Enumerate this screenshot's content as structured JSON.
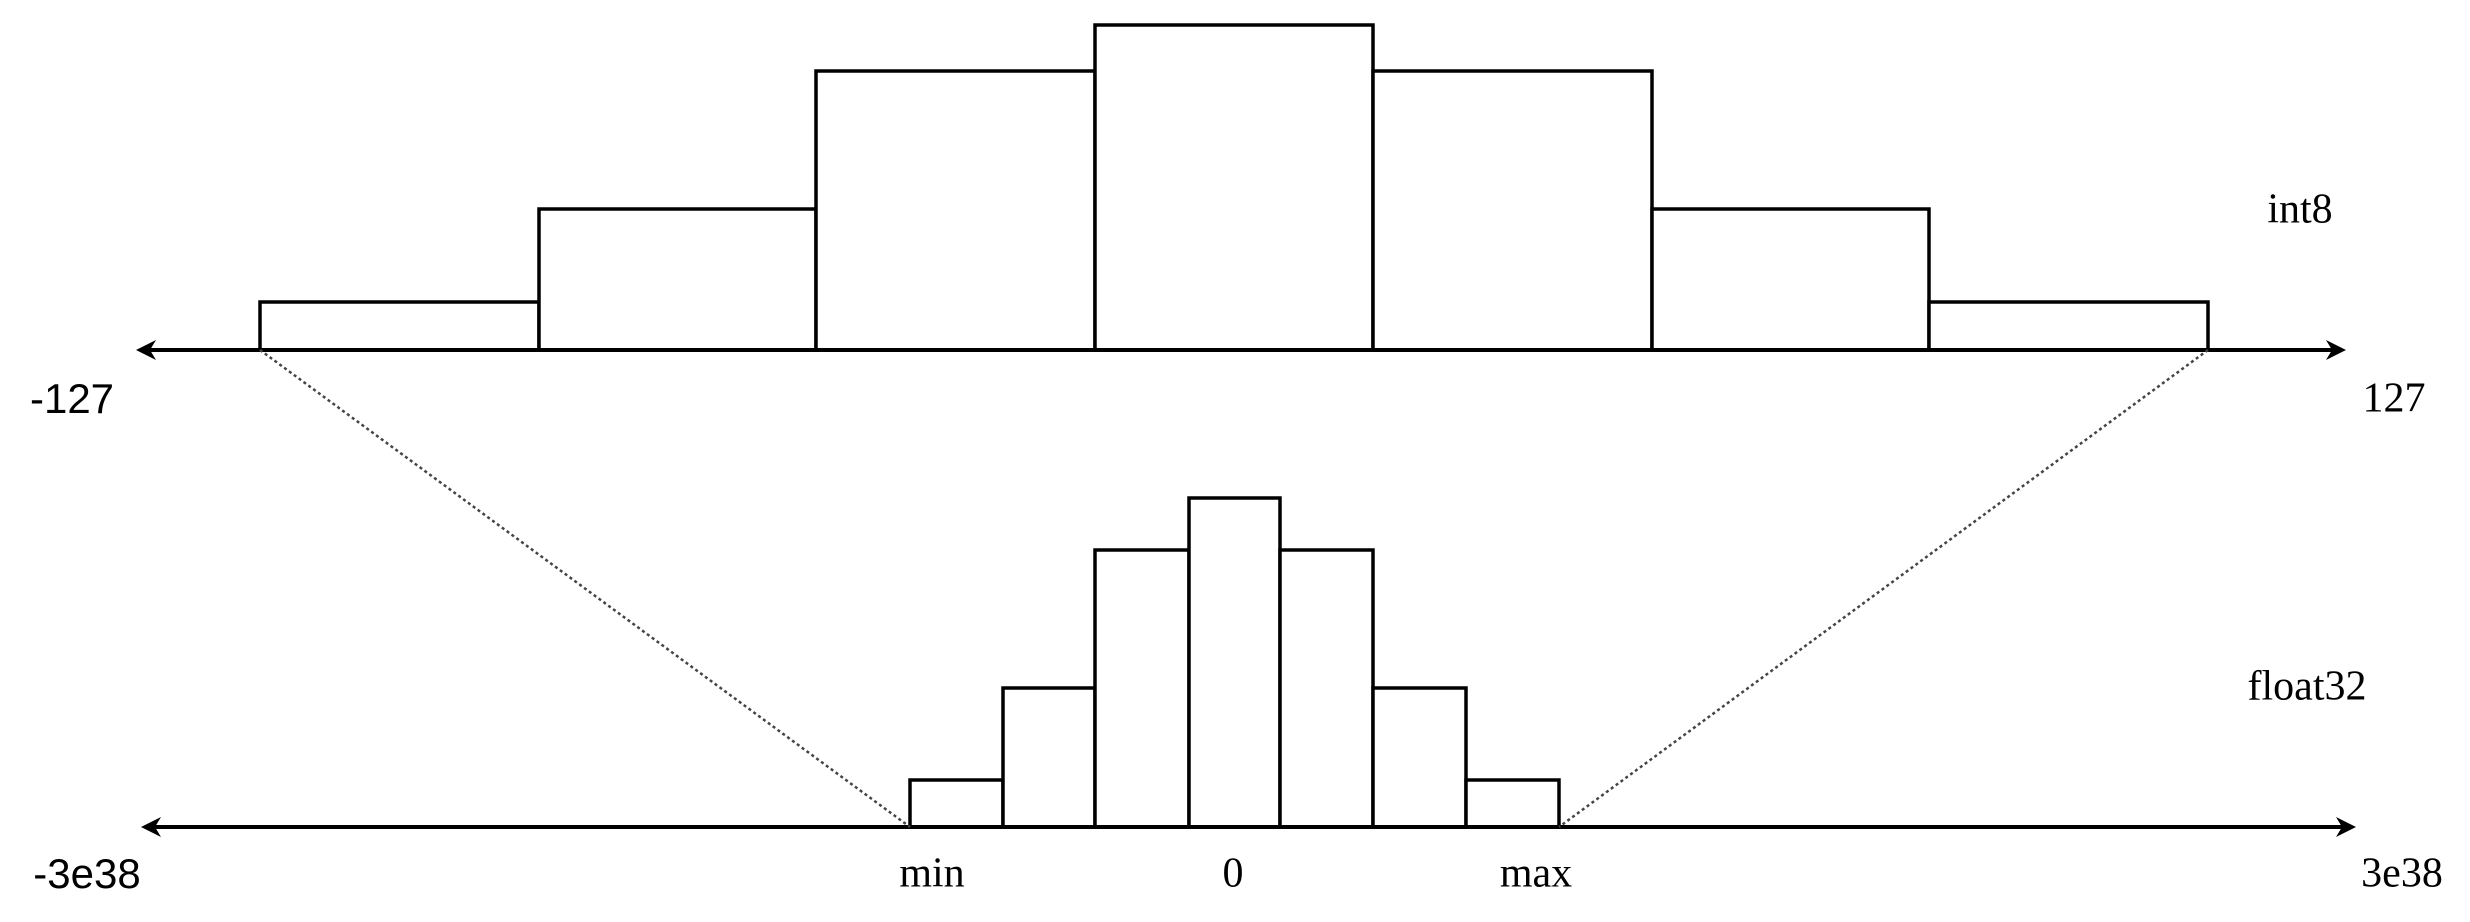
{
  "top": {
    "label": "int8",
    "min_label": "-127",
    "max_label": "127"
  },
  "bottom": {
    "label": "float32",
    "min_label": "-3e38",
    "max_label": "3e38",
    "range_min": "min",
    "zero": "0",
    "range_max": "max"
  }
}
